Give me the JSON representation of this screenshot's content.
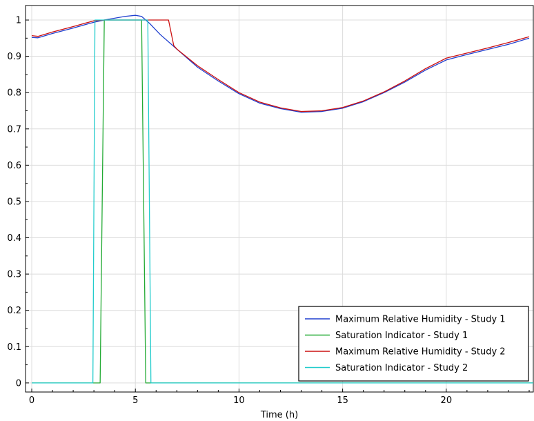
{
  "chart_data": {
    "type": "line",
    "title": "",
    "xlabel": "Time (h)",
    "ylabel": "",
    "xlim": [
      -0.3,
      24.2
    ],
    "ylim": [
      -0.025,
      1.04
    ],
    "xticks": [
      0,
      5,
      10,
      15,
      20
    ],
    "yticks": [
      0,
      0.1,
      0.2,
      0.3,
      0.4,
      0.5,
      0.6,
      0.7,
      0.8,
      0.9,
      1
    ],
    "grid": true,
    "legend_position": "bottom-right",
    "series": [
      {
        "name": "Maximum Relative Humidity - Study 1",
        "color": "#1f3fcf",
        "x": [
          0,
          0.3,
          1,
          2,
          3,
          3.5,
          4,
          4.5,
          5,
          5.3,
          5.7,
          6.2,
          7,
          8,
          9,
          10,
          11,
          12,
          13,
          14,
          15,
          16,
          17,
          18,
          19,
          20,
          21,
          22,
          23,
          24
        ],
        "y": [
          0.952,
          0.951,
          0.963,
          0.978,
          0.994,
          1.0,
          1.005,
          1.01,
          1.013,
          1.01,
          0.99,
          0.96,
          0.92,
          0.87,
          0.832,
          0.797,
          0.771,
          0.756,
          0.746,
          0.748,
          0.757,
          0.775,
          0.8,
          0.829,
          0.862,
          0.89,
          0.905,
          0.919,
          0.933,
          0.95
        ]
      },
      {
        "name": "Saturation Indicator - Study 1",
        "color": "#22aa33",
        "x": [
          0,
          3.3,
          3.5,
          5.3,
          5.5,
          24.2
        ],
        "y": [
          0,
          0,
          1,
          1,
          0,
          0
        ]
      },
      {
        "name": "Maximum Relative Humidity - Study 2",
        "color": "#cc1111",
        "x": [
          0,
          0.3,
          1,
          2,
          3,
          3.5,
          5,
          6,
          6.6,
          6.85,
          7,
          8,
          9,
          10,
          11,
          12,
          13,
          14,
          15,
          16,
          17,
          18,
          19,
          20,
          21,
          22,
          23,
          24
        ],
        "y": [
          0.957,
          0.955,
          0.967,
          0.982,
          0.998,
          1.0,
          1.0,
          1.0,
          1.0,
          0.93,
          0.92,
          0.874,
          0.836,
          0.8,
          0.774,
          0.758,
          0.748,
          0.75,
          0.759,
          0.777,
          0.802,
          0.832,
          0.866,
          0.895,
          0.909,
          0.923,
          0.938,
          0.954
        ]
      },
      {
        "name": "Saturation Indicator - Study 2",
        "color": "#22cccc",
        "x": [
          0,
          2.95,
          3.05,
          5.6,
          5.75,
          24.2
        ],
        "y": [
          0,
          0,
          1,
          1,
          0,
          0
        ]
      }
    ]
  }
}
